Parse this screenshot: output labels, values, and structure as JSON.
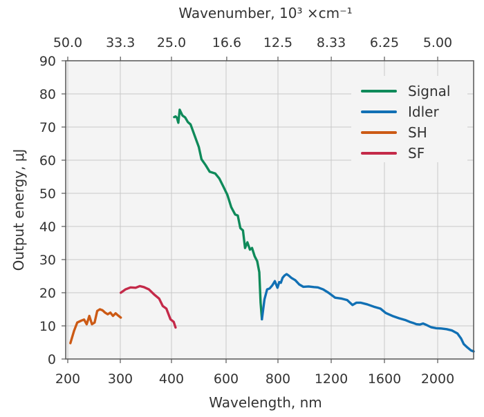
{
  "chart_data": {
    "type": "line",
    "xlabel": "Wavelength, nm",
    "ylabel": "Output energy, μJ",
    "top_axis_label": "Wavenumber, 10³ ×cm⁻¹",
    "ylim": [
      0,
      90
    ],
    "y_ticks": [
      "0",
      "10",
      "20",
      "30",
      "40",
      "50",
      "60",
      "70",
      "80",
      "90"
    ],
    "x_ticks": [
      {
        "label": "200",
        "nm": 200
      },
      {
        "label": "300",
        "nm": 300
      },
      {
        "label": "400",
        "nm": 400
      },
      {
        "label": "600",
        "nm": 600
      },
      {
        "label": "800",
        "nm": 800
      },
      {
        "label": "1200",
        "nm": 1200
      },
      {
        "label": "1600",
        "nm": 1600
      },
      {
        "label": "2000",
        "nm": 2000
      }
    ],
    "top_ticks": [
      "50.0",
      "33.3",
      "25.0",
      "16.6",
      "12.5",
      "8.33",
      "6.25",
      "5.00"
    ],
    "grid": true,
    "legend_position": "top-right",
    "series": [
      {
        "name": "Signal",
        "color": "#0f8a5a",
        "points": [
          [
            410,
            73
          ],
          [
            415,
            73.2
          ],
          [
            420,
            72.8
          ],
          [
            425,
            71.3
          ],
          [
            430,
            75.2
          ],
          [
            440,
            73.5
          ],
          [
            450,
            72.9
          ],
          [
            460,
            71.5
          ],
          [
            470,
            70.8
          ],
          [
            480,
            68.5
          ],
          [
            490,
            66.2
          ],
          [
            500,
            64
          ],
          [
            510,
            60.3
          ],
          [
            525,
            58.5
          ],
          [
            540,
            56.5
          ],
          [
            560,
            56
          ],
          [
            575,
            54.5
          ],
          [
            590,
            52
          ],
          [
            605,
            49.5
          ],
          [
            620,
            45.8
          ],
          [
            635,
            43.6
          ],
          [
            645,
            43.3
          ],
          [
            655,
            39.5
          ],
          [
            665,
            38.8
          ],
          [
            673,
            33.5
          ],
          [
            682,
            35.2
          ],
          [
            692,
            33
          ],
          [
            700,
            33.5
          ],
          [
            710,
            31
          ],
          [
            720,
            29.5
          ],
          [
            728,
            26.2
          ],
          [
            733,
            17
          ],
          [
            738,
            12
          ]
        ]
      },
      {
        "name": "Idler",
        "color": "#1170b4",
        "points": [
          [
            738,
            12
          ],
          [
            748,
            18
          ],
          [
            758,
            21
          ],
          [
            768,
            21.3
          ],
          [
            778,
            22.2
          ],
          [
            788,
            23.5
          ],
          [
            798,
            21.5
          ],
          [
            810,
            23.2
          ],
          [
            822,
            23
          ],
          [
            835,
            24.5
          ],
          [
            850,
            25.2
          ],
          [
            865,
            25.6
          ],
          [
            880,
            25.2
          ],
          [
            900,
            24.5
          ],
          [
            930,
            23.8
          ],
          [
            960,
            22.5
          ],
          [
            990,
            21.8
          ],
          [
            1030,
            21.9
          ],
          [
            1070,
            21.7
          ],
          [
            1100,
            21.6
          ],
          [
            1140,
            21
          ],
          [
            1180,
            20
          ],
          [
            1230,
            18.5
          ],
          [
            1280,
            18.2
          ],
          [
            1320,
            17.8
          ],
          [
            1360,
            16.3
          ],
          [
            1390,
            17
          ],
          [
            1420,
            17
          ],
          [
            1470,
            16.5
          ],
          [
            1520,
            15.8
          ],
          [
            1570,
            15.2
          ],
          [
            1610,
            13.9
          ],
          [
            1660,
            13
          ],
          [
            1710,
            12.3
          ],
          [
            1760,
            11.7
          ],
          [
            1790,
            11.2
          ],
          [
            1815,
            10.9
          ],
          [
            1840,
            10.5
          ],
          [
            1865,
            10.4
          ],
          [
            1890,
            10.7
          ],
          [
            1915,
            10.3
          ],
          [
            1950,
            9.6
          ],
          [
            1990,
            9.3
          ],
          [
            2020,
            9.2
          ],
          [
            2050,
            9
          ],
          [
            2080,
            8.6
          ],
          [
            2110,
            7.7
          ],
          [
            2130,
            6.2
          ],
          [
            2145,
            4.5
          ],
          [
            2165,
            3.5
          ],
          [
            2185,
            2.6
          ],
          [
            2200,
            2.3
          ]
        ]
      },
      {
        "name": "SH",
        "color": "#cc5a15",
        "points": [
          [
            205,
            4.8
          ],
          [
            212,
            8.5
          ],
          [
            218,
            11
          ],
          [
            226,
            11.6
          ],
          [
            231,
            11.9
          ],
          [
            236,
            10.5
          ],
          [
            241,
            13
          ],
          [
            246,
            10.5
          ],
          [
            251,
            11
          ],
          [
            256,
            14.5
          ],
          [
            261,
            15
          ],
          [
            266,
            14.7
          ],
          [
            271,
            14
          ],
          [
            276,
            13.5
          ],
          [
            281,
            14
          ],
          [
            286,
            13
          ],
          [
            291,
            13.8
          ],
          [
            296,
            13.1
          ],
          [
            301,
            12.5
          ]
        ]
      },
      {
        "name": "SF",
        "color": "#c42a49",
        "points": [
          [
            301,
            20
          ],
          [
            310,
            21
          ],
          [
            320,
            21.6
          ],
          [
            330,
            21.5
          ],
          [
            338,
            22
          ],
          [
            346,
            21.7
          ],
          [
            356,
            21
          ],
          [
            366,
            19.5
          ],
          [
            376,
            18.2
          ],
          [
            383,
            16
          ],
          [
            390,
            15.2
          ],
          [
            398,
            12
          ],
          [
            408,
            11.2
          ],
          [
            415,
            9.5
          ]
        ]
      }
    ]
  }
}
